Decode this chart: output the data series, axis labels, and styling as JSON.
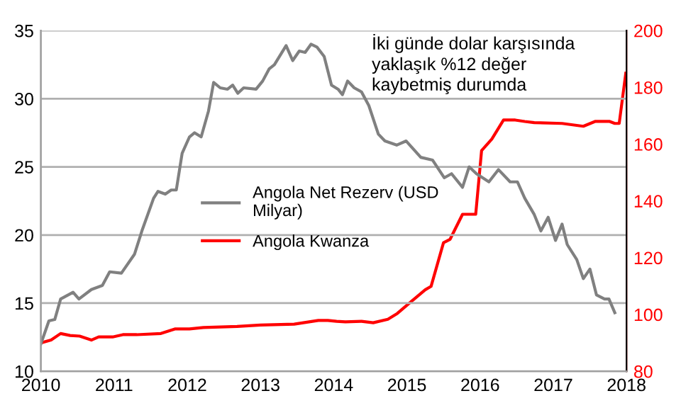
{
  "chart_data": {
    "type": "line",
    "xlim": [
      2010,
      2018
    ],
    "xticks": [
      2010,
      2011,
      2012,
      2013,
      2014,
      2015,
      2016,
      2017,
      2018
    ],
    "ylim": [
      10,
      35
    ],
    "yticks": [
      10,
      15,
      20,
      25,
      30,
      35
    ],
    "y2lim": [
      80,
      200
    ],
    "y2ticks": [
      80,
      100,
      120,
      140,
      160,
      180,
      200
    ],
    "grid": "y",
    "legend": "left",
    "marker": "none",
    "line_style": "solid",
    "annotations": [
      "İki günde dolar karşısında\nyaklaşık %12 değer\nkaybetmiş durumda"
    ],
    "series": [
      {
        "name": "Angola Net Rezerv (USD\nMilyar)",
        "color": "#808080",
        "x": [
          2010.0,
          2010.11,
          2010.19,
          2010.27,
          2010.44,
          2010.52,
          2010.69,
          2010.84,
          2010.94,
          2011.1,
          2011.28,
          2011.38,
          2011.54,
          2011.6,
          2011.7,
          2011.78,
          2011.85,
          2011.93,
          2012.03,
          2012.1,
          2012.19,
          2012.29,
          2012.36,
          2012.45,
          2012.55,
          2012.62,
          2012.69,
          2012.77,
          2012.94,
          2013.03,
          2013.12,
          2013.19,
          2013.35,
          2013.44,
          2013.53,
          2013.61,
          2013.69,
          2013.77,
          2013.87,
          2013.97,
          2014.06,
          2014.12,
          2014.19,
          2014.28,
          2014.38,
          2014.48,
          2014.61,
          2014.7,
          2014.86,
          2014.99,
          2015.19,
          2015.35,
          2015.51,
          2015.61,
          2015.76,
          2015.85,
          2015.95,
          2016.12,
          2016.25,
          2016.41,
          2016.51,
          2016.61,
          2016.74,
          2016.83,
          2016.93,
          2017.03,
          2017.12,
          2017.19,
          2017.32,
          2017.41,
          2017.5,
          2017.59,
          2017.7,
          2017.76,
          2017.84
        ],
        "values": [
          12.0,
          13.7,
          13.8,
          15.3,
          15.8,
          15.3,
          16.0,
          16.3,
          17.3,
          17.2,
          18.6,
          20.3,
          22.7,
          23.2,
          23.0,
          23.3,
          23.3,
          26.0,
          27.2,
          27.5,
          27.2,
          29.1,
          31.2,
          30.8,
          30.7,
          31.0,
          30.4,
          30.8,
          30.7,
          31.3,
          32.2,
          32.5,
          33.9,
          32.8,
          33.5,
          33.4,
          34.0,
          33.8,
          33.1,
          31.0,
          30.7,
          30.3,
          31.3,
          30.8,
          30.5,
          29.5,
          27.4,
          26.9,
          26.6,
          26.9,
          25.7,
          25.5,
          24.2,
          24.5,
          23.5,
          25.0,
          24.5,
          23.9,
          24.8,
          23.9,
          23.9,
          22.7,
          21.5,
          20.3,
          21.3,
          19.6,
          20.8,
          19.3,
          18.2,
          16.8,
          17.5,
          15.6,
          15.3,
          15.3,
          14.3
        ]
      },
      {
        "name": "Angola Kwanza",
        "color": "#ff0000",
        "axis": "y2",
        "x": [
          2010.0,
          2010.14,
          2010.27,
          2010.4,
          2010.53,
          2010.69,
          2010.79,
          2010.98,
          2011.12,
          2011.31,
          2011.64,
          2011.83,
          2012.03,
          2012.22,
          2012.68,
          2013.0,
          2013.46,
          2013.79,
          2013.92,
          2014.04,
          2014.16,
          2014.38,
          2014.54,
          2014.74,
          2014.87,
          2015.06,
          2015.25,
          2015.33,
          2015.5,
          2015.59,
          2015.76,
          2015.84,
          2015.94,
          2016.02,
          2016.16,
          2016.32,
          2016.48,
          2016.61,
          2016.74,
          2017.12,
          2017.41,
          2017.57,
          2017.77,
          2017.84,
          2017.9,
          2017.99
        ],
        "values": [
          90,
          91,
          93.3,
          92.6,
          92.4,
          91,
          92.1,
          92.1,
          92.9,
          92.9,
          93.3,
          94.9,
          94.9,
          95.4,
          95.8,
          96.3,
          96.6,
          97.9,
          97.9,
          97.6,
          97.4,
          97.6,
          97.1,
          98.3,
          100.4,
          104.6,
          108.7,
          109.9,
          125.3,
          126.5,
          135.3,
          135.3,
          135.3,
          157.7,
          161.8,
          168.5,
          168.5,
          168,
          167.6,
          167.3,
          166.3,
          168,
          168,
          167.3,
          167.3,
          185
        ]
      }
    ]
  }
}
